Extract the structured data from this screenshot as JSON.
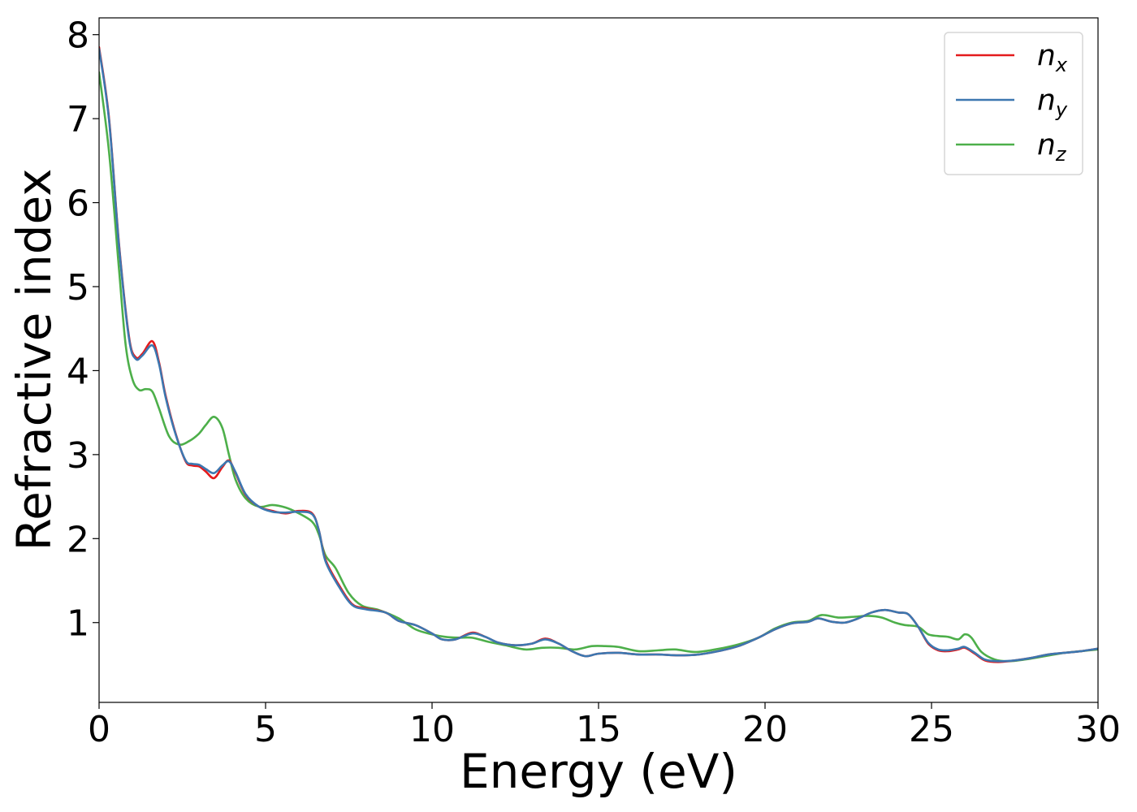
{
  "chart_data": {
    "type": "line",
    "xlabel": "Energy (eV)",
    "ylabel": "Refractive index",
    "xlim": [
      0,
      30
    ],
    "ylim": [
      0.05,
      8.2
    ],
    "xticks": [
      0,
      5,
      10,
      15,
      20,
      25,
      30
    ],
    "yticks": [
      1,
      2,
      3,
      4,
      5,
      6,
      7,
      8
    ],
    "grid": false,
    "legend_position": "top-right",
    "series": [
      {
        "name": "n",
        "subscript": "x",
        "color": "#e41a1c",
        "x": [
          0,
          0.3,
          0.6,
          0.9,
          1.1,
          1.3,
          1.6,
          1.8,
          2.0,
          2.3,
          2.6,
          2.8,
          3.0,
          3.2,
          3.45,
          3.7,
          3.9,
          4.1,
          4.4,
          4.8,
          5.2,
          5.6,
          6.0,
          6.4,
          6.6,
          6.8,
          7.2,
          7.6,
          8.0,
          8.6,
          9.0,
          9.5,
          10.0,
          10.3,
          10.7,
          11.2,
          11.6,
          12.0,
          12.5,
          13.0,
          13.4,
          13.8,
          14.2,
          14.6,
          15.0,
          15.6,
          16.2,
          16.8,
          17.4,
          18.0,
          18.6,
          19.2,
          19.8,
          20.3,
          20.8,
          21.3,
          21.6,
          22.0,
          22.4,
          22.8,
          23.2,
          23.6,
          24.0,
          24.3,
          24.6,
          24.9,
          25.2,
          25.5,
          25.8,
          26.0,
          26.3,
          26.6,
          27.0,
          27.5,
          28.0,
          28.5,
          29.0,
          29.5,
          30.0
        ],
        "y": [
          7.85,
          7.0,
          5.5,
          4.4,
          4.16,
          4.2,
          4.35,
          4.1,
          3.7,
          3.25,
          2.92,
          2.87,
          2.86,
          2.8,
          2.72,
          2.85,
          2.93,
          2.78,
          2.52,
          2.38,
          2.33,
          2.3,
          2.33,
          2.3,
          2.1,
          1.75,
          1.45,
          1.22,
          1.17,
          1.12,
          1.02,
          0.97,
          0.87,
          0.8,
          0.8,
          0.88,
          0.83,
          0.76,
          0.73,
          0.75,
          0.81,
          0.75,
          0.66,
          0.6,
          0.63,
          0.64,
          0.62,
          0.62,
          0.61,
          0.62,
          0.66,
          0.72,
          0.82,
          0.92,
          0.99,
          1.01,
          1.05,
          1.01,
          1.0,
          1.05,
          1.12,
          1.15,
          1.12,
          1.1,
          0.95,
          0.75,
          0.67,
          0.66,
          0.68,
          0.7,
          0.63,
          0.55,
          0.53,
          0.55,
          0.58,
          0.62,
          0.64,
          0.66,
          0.69
        ]
      },
      {
        "name": "n",
        "subscript": "y",
        "color": "#3c77b0",
        "x": [
          0,
          0.3,
          0.6,
          0.9,
          1.1,
          1.3,
          1.6,
          1.8,
          2.0,
          2.3,
          2.6,
          2.8,
          3.0,
          3.2,
          3.45,
          3.7,
          3.9,
          4.1,
          4.4,
          4.8,
          5.2,
          5.6,
          6.0,
          6.4,
          6.6,
          6.8,
          7.2,
          7.6,
          8.0,
          8.6,
          9.0,
          9.5,
          10.0,
          10.3,
          10.7,
          11.2,
          11.6,
          12.0,
          12.5,
          13.0,
          13.4,
          13.8,
          14.2,
          14.6,
          15.0,
          15.6,
          16.2,
          16.8,
          17.4,
          18.0,
          18.6,
          19.2,
          19.8,
          20.3,
          20.8,
          21.3,
          21.6,
          22.0,
          22.4,
          22.8,
          23.2,
          23.6,
          24.0,
          24.3,
          24.6,
          24.9,
          25.2,
          25.5,
          25.8,
          26.0,
          26.3,
          26.6,
          27.0,
          27.5,
          28.0,
          28.5,
          29.0,
          29.5,
          30.0
        ],
        "y": [
          7.83,
          6.98,
          5.48,
          4.38,
          4.14,
          4.18,
          4.3,
          4.08,
          3.68,
          3.24,
          2.93,
          2.89,
          2.88,
          2.83,
          2.78,
          2.87,
          2.92,
          2.79,
          2.53,
          2.38,
          2.32,
          2.31,
          2.32,
          2.29,
          2.1,
          1.73,
          1.43,
          1.21,
          1.16,
          1.12,
          1.02,
          0.97,
          0.87,
          0.8,
          0.8,
          0.87,
          0.83,
          0.76,
          0.73,
          0.75,
          0.8,
          0.75,
          0.66,
          0.6,
          0.63,
          0.64,
          0.62,
          0.62,
          0.61,
          0.62,
          0.66,
          0.72,
          0.82,
          0.92,
          0.99,
          1.01,
          1.05,
          1.01,
          1.0,
          1.05,
          1.12,
          1.15,
          1.12,
          1.1,
          0.95,
          0.76,
          0.68,
          0.67,
          0.69,
          0.71,
          0.64,
          0.56,
          0.54,
          0.55,
          0.58,
          0.62,
          0.64,
          0.66,
          0.69
        ]
      },
      {
        "name": "n",
        "subscript": "z",
        "color": "#4daf4a",
        "x": [
          0,
          0.3,
          0.6,
          0.8,
          1.0,
          1.2,
          1.4,
          1.6,
          1.8,
          2.1,
          2.4,
          2.7,
          3.0,
          3.2,
          3.45,
          3.7,
          3.9,
          4.1,
          4.4,
          4.8,
          5.2,
          5.6,
          6.0,
          6.4,
          6.6,
          6.8,
          7.1,
          7.5,
          7.9,
          8.4,
          9.0,
          9.5,
          10.0,
          10.4,
          10.8,
          11.2,
          11.7,
          12.2,
          12.8,
          13.3,
          13.8,
          14.3,
          14.8,
          15.2,
          15.6,
          16.2,
          16.8,
          17.3,
          17.9,
          18.5,
          19.2,
          19.8,
          20.3,
          20.8,
          21.3,
          21.7,
          22.2,
          22.7,
          23.1,
          23.5,
          23.9,
          24.2,
          24.6,
          24.9,
          25.2,
          25.5,
          25.8,
          26.0,
          26.2,
          26.5,
          26.9,
          27.3,
          27.8,
          28.4,
          29.0,
          29.5,
          30.0
        ],
        "y": [
          7.55,
          6.6,
          5.2,
          4.3,
          3.9,
          3.77,
          3.78,
          3.75,
          3.55,
          3.22,
          3.12,
          3.16,
          3.25,
          3.35,
          3.45,
          3.32,
          3.0,
          2.7,
          2.48,
          2.38,
          2.4,
          2.37,
          2.3,
          2.2,
          2.05,
          1.8,
          1.65,
          1.35,
          1.2,
          1.15,
          1.05,
          0.92,
          0.86,
          0.83,
          0.82,
          0.82,
          0.77,
          0.73,
          0.68,
          0.7,
          0.7,
          0.68,
          0.72,
          0.72,
          0.71,
          0.66,
          0.67,
          0.68,
          0.65,
          0.68,
          0.74,
          0.82,
          0.93,
          1.0,
          1.02,
          1.09,
          1.06,
          1.07,
          1.08,
          1.06,
          1.0,
          0.97,
          0.95,
          0.86,
          0.84,
          0.83,
          0.8,
          0.86,
          0.82,
          0.65,
          0.56,
          0.54,
          0.56,
          0.6,
          0.64,
          0.66,
          0.68
        ]
      }
    ]
  }
}
